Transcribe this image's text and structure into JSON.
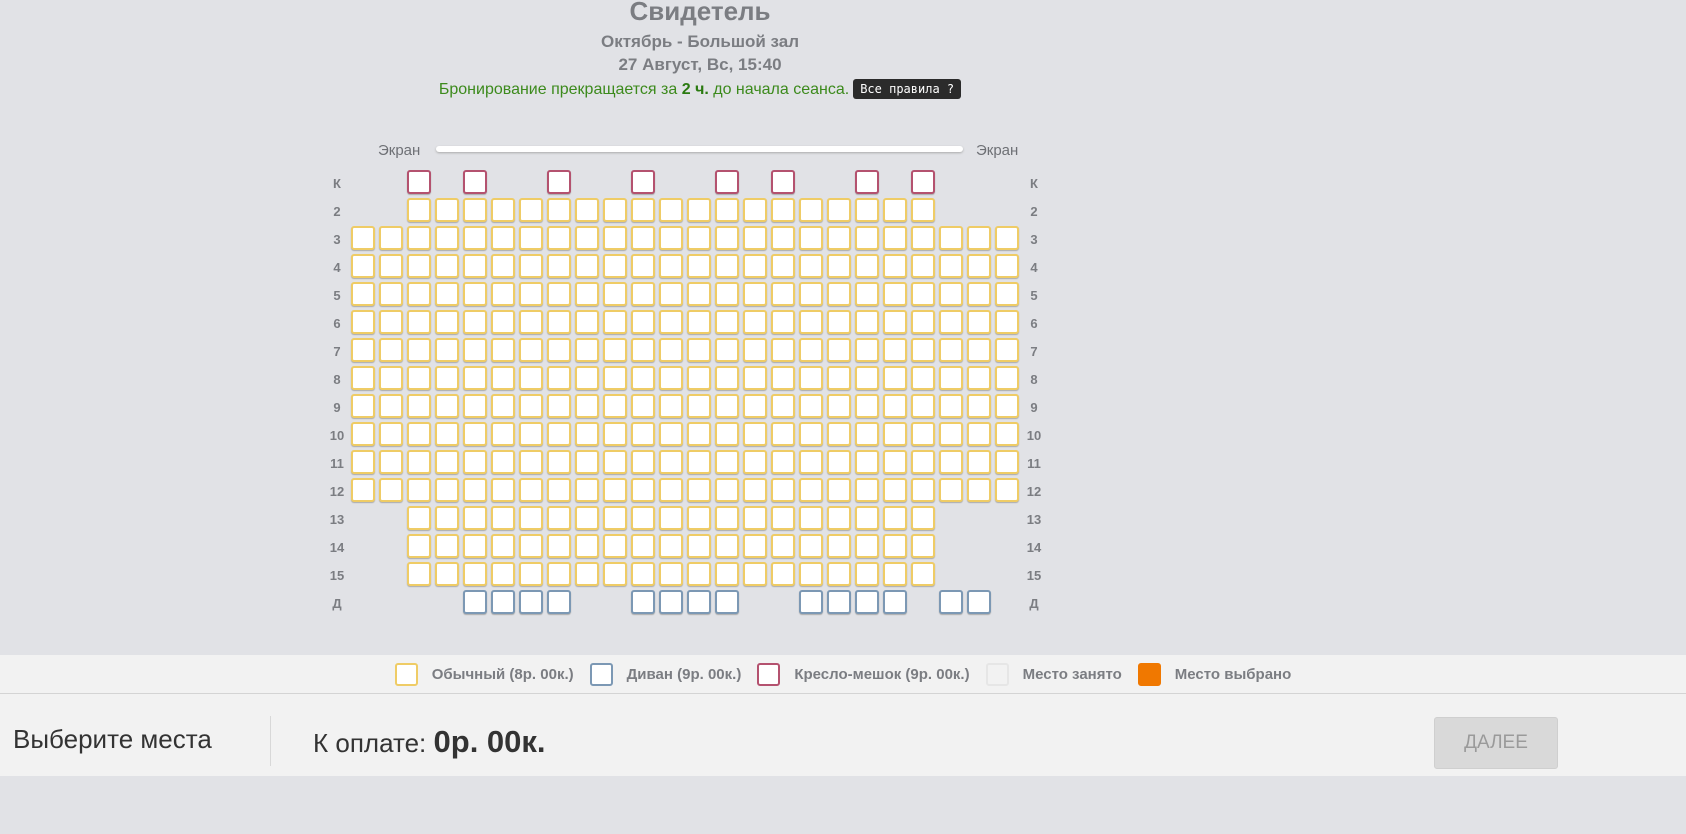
{
  "header": {
    "title": "Свидетель",
    "hall": "Октябрь - Большой зал",
    "date": "27 Август, Вс, 15:40",
    "rule_prefix": "Бронирование прекращается за",
    "rule_hours": "2 ч.",
    "rule_suffix": "до начала сеанса.",
    "rules_button": "Все правила ?"
  },
  "screen_label": "Экран",
  "colors": {
    "regular": "#efcc66",
    "sofa": "#7c98b4",
    "beanbag": "#b4526f",
    "taken": "#f2f2f2",
    "selected": "#f07800"
  },
  "rows": [
    {
      "label": "К",
      "type": "beanbag",
      "seats": 8
    },
    {
      "label": "2",
      "type": "regular",
      "seats": 19
    },
    {
      "label": "3",
      "type": "regular",
      "seats": 24
    },
    {
      "label": "4",
      "type": "regular",
      "seats": 24
    },
    {
      "label": "5",
      "type": "regular",
      "seats": 24
    },
    {
      "label": "6",
      "type": "regular",
      "seats": 24
    },
    {
      "label": "7",
      "type": "regular",
      "seats": 24
    },
    {
      "label": "8",
      "type": "regular",
      "seats": 24
    },
    {
      "label": "9",
      "type": "regular",
      "seats": 24
    },
    {
      "label": "10",
      "type": "regular",
      "seats": 24
    },
    {
      "label": "11",
      "type": "regular",
      "seats": 24
    },
    {
      "label": "12",
      "type": "regular",
      "seats": 24
    },
    {
      "label": "13",
      "type": "regular",
      "seats": 19
    },
    {
      "label": "14",
      "type": "regular",
      "seats": 19
    },
    {
      "label": "15",
      "type": "regular",
      "seats": 19
    },
    {
      "label": "Д",
      "type": "sofa",
      "seats": 14
    }
  ],
  "legend": [
    {
      "key": "regular",
      "label": "Обычный (8р. 00к.)"
    },
    {
      "key": "sofa",
      "label": "Диван (9р. 00к.)"
    },
    {
      "key": "beanbag",
      "label": "Кресло-мешок (9р. 00к.)"
    },
    {
      "key": "taken",
      "label": "Место занято"
    },
    {
      "key": "selected",
      "label": "Место выбрано"
    }
  ],
  "footer": {
    "choose": "Выберите места",
    "pay_label": "К оплате:",
    "pay_amount": "0р. 00к.",
    "next_button": "ДАЛЕЕ"
  }
}
